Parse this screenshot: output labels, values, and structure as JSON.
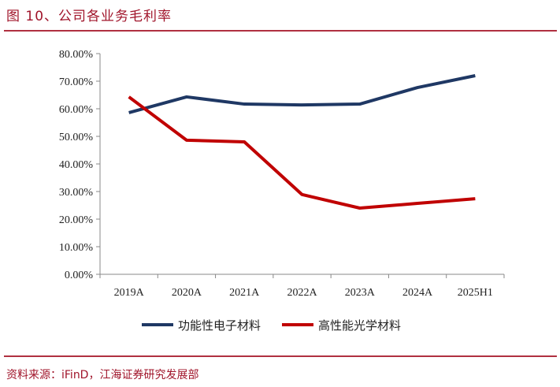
{
  "title": "图 10、公司各业务毛利率",
  "source": "资料来源：iFinD，江海证券研究发展部",
  "chart_data": {
    "type": "line",
    "title": "图 10、公司各业务毛利率",
    "xlabel": "",
    "ylabel": "",
    "categories": [
      "2019A",
      "2020A",
      "2021A",
      "2022A",
      "2023A",
      "2024A",
      "2025H1"
    ],
    "ylim": [
      0,
      80
    ],
    "yticks": [
      0,
      10,
      20,
      30,
      40,
      50,
      60,
      70,
      80
    ],
    "ytick_labels": [
      "0.00%",
      "10.00%",
      "20.00%",
      "30.00%",
      "40.00%",
      "50.00%",
      "60.00%",
      "70.00%",
      "80.00%"
    ],
    "grid": false,
    "legend_position": "bottom",
    "series": [
      {
        "name": "功能性电子材料",
        "color": "#1f3864",
        "values": [
          58.6,
          64.3,
          61.7,
          61.4,
          61.7,
          67.7,
          72.0
        ]
      },
      {
        "name": "高性能光学材料",
        "color": "#c00000",
        "values": [
          64.3,
          48.6,
          48.0,
          28.9,
          24.0,
          25.7,
          27.4
        ]
      }
    ]
  }
}
